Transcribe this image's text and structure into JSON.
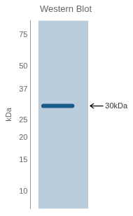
{
  "chart_data": {
    "type": "gel",
    "title": "Western Blot",
    "y_label": "kDa",
    "log": "y",
    "ylim": [
      8,
      90
    ],
    "yticks": [
      75,
      50,
      37,
      25,
      20,
      15,
      10
    ],
    "values": [
      30
    ],
    "color": "#1a5a8a",
    "annotations": [
      {
        "text": "30kDa",
        "y": 30
      }
    ],
    "tick_labels": "y",
    "grid": false,
    "legend": false
  }
}
